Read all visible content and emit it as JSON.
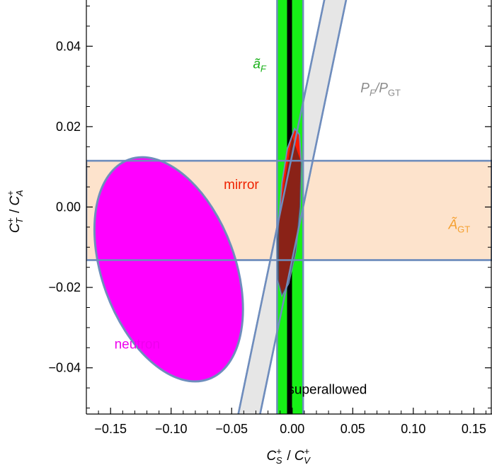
{
  "chart_data": {
    "type": "scatter",
    "title": "",
    "xlabel": "C_S^+ / C_V^+",
    "ylabel": "C_T^+ / C_A^+",
    "xlim": [
      -0.17,
      0.165
    ],
    "ylim": [
      -0.0515,
      0.0515
    ],
    "x_ticks": [
      -0.15,
      -0.1,
      -0.05,
      0.0,
      0.05,
      0.1,
      0.15
    ],
    "x_tick_labels": [
      "−0.15",
      "−0.10",
      "−0.05",
      "0.00",
      "0.05",
      "0.10",
      "0.15"
    ],
    "y_ticks": [
      -0.04,
      -0.02,
      0.0,
      0.02,
      0.04
    ],
    "y_tick_labels": [
      "−0.04",
      "−0.02",
      "0.00",
      "0.02",
      "0.04"
    ],
    "grid": false,
    "regions": [
      {
        "name": "Ã_GT",
        "label": "Ã",
        "label_sub": "GT",
        "shape": "horizontal-band",
        "y_min": -0.0132,
        "y_max": 0.0115,
        "color": "#fde3cc",
        "label_color": "#f5a030",
        "label_at": [
          0.138,
          -0.0055
        ]
      },
      {
        "name": "ã_F",
        "label": "ã",
        "label_sub": "F",
        "shape": "vertical-band",
        "x_min": -0.0125,
        "x_max": 0.009,
        "color": "#17f017",
        "label_color": "#19b019",
        "label_at": [
          -0.027,
          0.0345
        ]
      },
      {
        "name": "superallowed",
        "label": "superallowed",
        "shape": "vertical-line",
        "x": -0.0022,
        "color": "#000000",
        "label_color": "#000000",
        "label_at": [
          0.029,
          -0.0465
        ]
      },
      {
        "name": "P_F/P_GT",
        "label": "P",
        "label_sub": "F",
        "label_mid": "/P",
        "label_sub2": "GT",
        "shape": "slanted-band",
        "slope": 1.45,
        "intercept": 0.0,
        "half_width_x": 0.009,
        "color": "#e6e6e6",
        "label_color": "#8c8c8c",
        "label_at": [
          0.073,
          0.0285
        ]
      },
      {
        "name": "mirror",
        "label": "mirror",
        "shape": "polygon",
        "color": "#ff1a00",
        "label_color": "#ee2200",
        "label_at": [
          -0.042,
          0.0045
        ],
        "points": [
          [
            0.002,
            0.0195
          ],
          [
            0.006,
            0.018
          ],
          [
            0.0075,
            0.011
          ],
          [
            0.0065,
            0.0
          ],
          [
            0.003,
            -0.011
          ],
          [
            -0.003,
            -0.019
          ],
          [
            -0.0085,
            -0.022
          ],
          [
            -0.0115,
            -0.0185
          ],
          [
            -0.0115,
            -0.005
          ],
          [
            -0.0085,
            0.006
          ],
          [
            -0.004,
            0.0145
          ]
        ]
      },
      {
        "name": "mirror-overlap",
        "shape": "polygon",
        "color": "#2a2a2a",
        "opacity": 0.55,
        "points": [
          [
            0.0,
            0.0175
          ],
          [
            0.0075,
            0.011
          ],
          [
            0.0065,
            0.0
          ],
          [
            0.003,
            -0.011
          ],
          [
            -0.003,
            -0.019
          ],
          [
            -0.0085,
            -0.022
          ],
          [
            -0.012,
            -0.018
          ],
          [
            -0.0125,
            -0.008
          ],
          [
            -0.0085,
            0.002
          ],
          [
            -0.004,
            0.0105
          ]
        ]
      },
      {
        "name": "neutron",
        "label": "neutron",
        "shape": "ellipse",
        "cx": -0.102,
        "cy": -0.0155,
        "rx": 0.055,
        "ry": 0.0083,
        "angle_deg": -20,
        "color": "#ff00ff",
        "label_color": "#ee00ee",
        "label_at": [
          -0.128,
          -0.0352
        ]
      }
    ]
  }
}
